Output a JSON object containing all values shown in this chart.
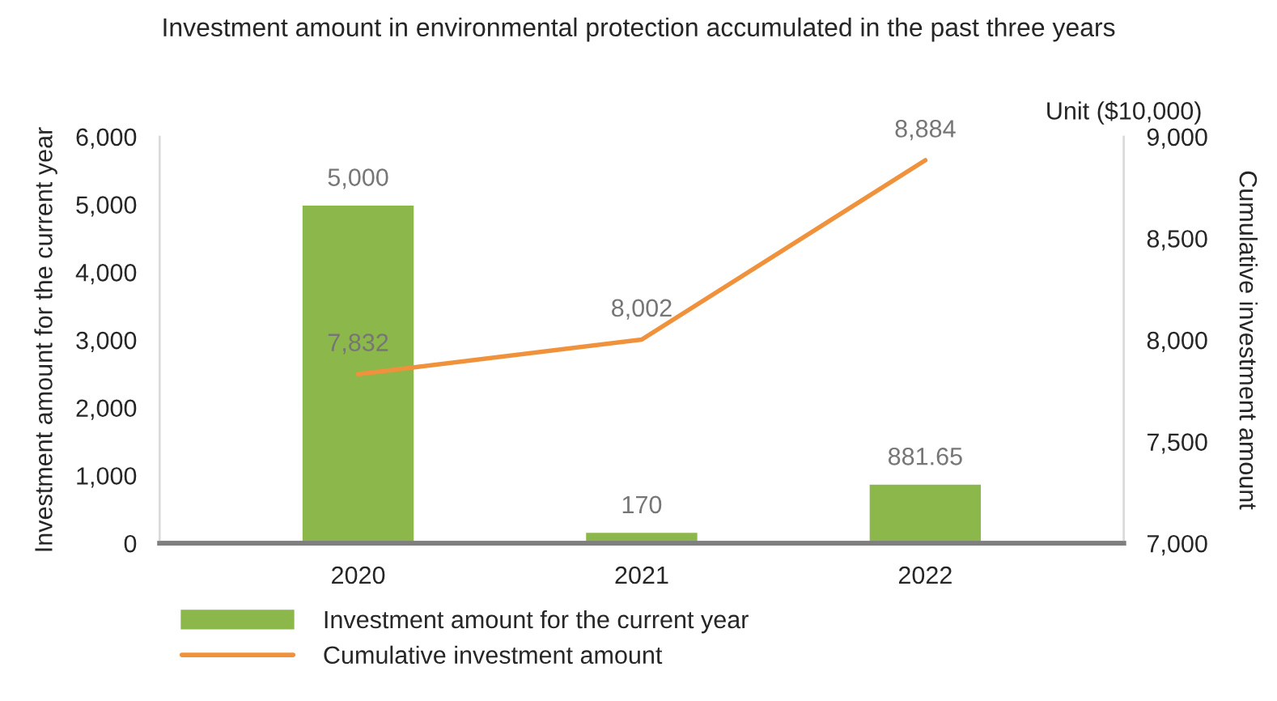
{
  "chart_data": {
    "type": "bar",
    "title": "Investment amount in environmental protection accumulated in the past three years",
    "ylabel": "Investment amount for the current year",
    "y2label": "Cumulative investment amount",
    "annotations": [
      "Unit ($10,000)"
    ],
    "categories": [
      "2020",
      "2021",
      "2022"
    ],
    "series": [
      {
        "name": "Investment amount for the current year",
        "color": "#8cb74a",
        "values": [
          5000,
          170,
          881.65
        ],
        "value_labels": [
          "5,000",
          "170",
          "881.65"
        ]
      },
      {
        "name": "Cumulative investment amount",
        "type": "line",
        "axis": "y2",
        "color": "#f0913c",
        "values": [
          7832,
          8002,
          8884
        ],
        "value_labels": [
          "7,832",
          "8,002",
          "8,884"
        ]
      }
    ],
    "ylim": [
      0,
      6000
    ],
    "yticks": [
      {
        "value": 0,
        "label": "0"
      },
      {
        "value": 1000,
        "label": "1,000"
      },
      {
        "value": 2000,
        "label": "2,000"
      },
      {
        "value": 3000,
        "label": "3,000"
      },
      {
        "value": 4000,
        "label": "4,000"
      },
      {
        "value": 5000,
        "label": "5,000"
      },
      {
        "value": 6000,
        "label": "6,000"
      }
    ],
    "y2lim": [
      7000,
      9000
    ],
    "y2ticks": [
      {
        "value": 7000,
        "label": "7,000"
      },
      {
        "value": 7500,
        "label": "7,500"
      },
      {
        "value": 8000,
        "label": "8,000"
      },
      {
        "value": 8500,
        "label": "8,500"
      },
      {
        "value": 9000,
        "label": "9,000"
      }
    ],
    "grid": false,
    "legend": "bottom",
    "marker": "none",
    "line_style": "solid"
  }
}
